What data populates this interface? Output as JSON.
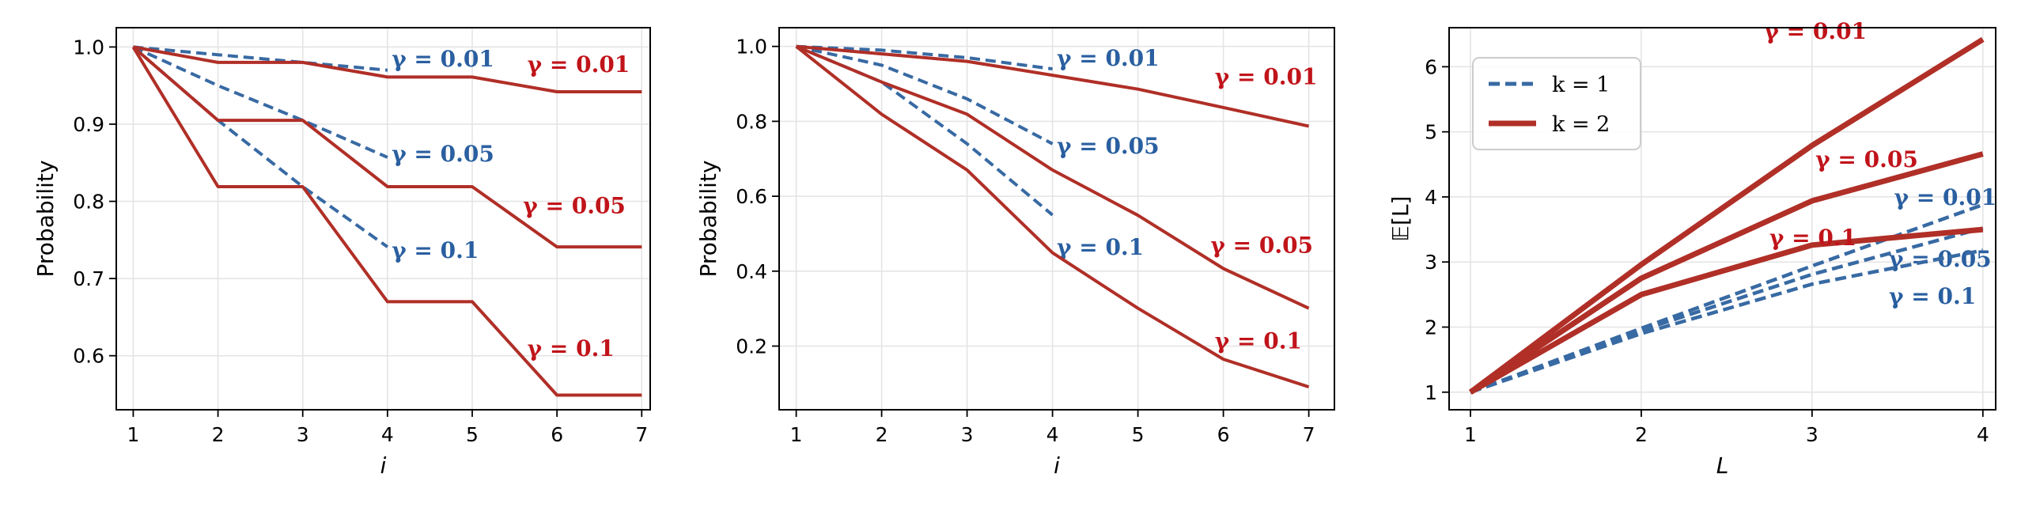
{
  "colors": {
    "blue": "#386aa3",
    "blue_label": "#2a5fa0",
    "red": "#b02f27",
    "red_label": "#c0141a"
  },
  "chart_data": [
    {
      "type": "line",
      "xlabel": "i",
      "ylabel": "Probability",
      "xlim": [
        0.8,
        7.1
      ],
      "ylim": [
        0.53,
        1.025
      ],
      "xticks": [
        1,
        2,
        3,
        4,
        5,
        6,
        7
      ],
      "yticks": [
        0.6,
        0.7,
        0.8,
        0.9,
        1.0
      ],
      "ytick_labels": [
        "0.6",
        "0.7",
        "0.8",
        "0.9",
        "1.0"
      ],
      "grid": true,
      "series": [
        {
          "style": "dashed",
          "color": "blue",
          "label": "γ = 0.01",
          "label_at": [
            4.05,
            0.985
          ],
          "x": [
            1,
            2,
            3,
            4
          ],
          "y": [
            1.0,
            0.99,
            0.98,
            0.97
          ]
        },
        {
          "style": "dashed",
          "color": "blue",
          "label": "γ = 0.05",
          "label_at": [
            4.05,
            0.862
          ],
          "x": [
            1,
            2,
            3,
            4
          ],
          "y": [
            1.0,
            0.95,
            0.905,
            0.857
          ]
        },
        {
          "style": "dashed",
          "color": "blue",
          "label": "γ = 0.1",
          "label_at": [
            4.05,
            0.737
          ],
          "x": [
            1,
            2,
            3,
            4
          ],
          "y": [
            1.0,
            0.905,
            0.819,
            0.741
          ]
        },
        {
          "style": "solid",
          "color": "red",
          "label": "γ = 0.01",
          "label_at": [
            5.65,
            0.978
          ],
          "x": [
            1,
            2,
            3,
            4,
            5,
            6,
            7
          ],
          "y": [
            1.0,
            0.98,
            0.98,
            0.961,
            0.961,
            0.942,
            0.942
          ]
        },
        {
          "style": "solid",
          "color": "red",
          "label": "γ = 0.05",
          "label_at": [
            5.6,
            0.795
          ],
          "x": [
            1,
            2,
            3,
            4,
            5,
            6,
            7
          ],
          "y": [
            1.0,
            0.905,
            0.905,
            0.819,
            0.819,
            0.741,
            0.741
          ]
        },
        {
          "style": "solid",
          "color": "red",
          "label": "γ = 0.1",
          "label_at": [
            5.65,
            0.61
          ],
          "x": [
            1,
            2,
            3,
            4,
            5,
            6,
            7
          ],
          "y": [
            1.0,
            0.819,
            0.819,
            0.67,
            0.67,
            0.549,
            0.549
          ]
        }
      ]
    },
    {
      "type": "line",
      "xlabel": "i",
      "ylabel": "Probability",
      "xlim": [
        0.8,
        7.3
      ],
      "ylim": [
        0.03,
        1.05
      ],
      "xticks": [
        1,
        2,
        3,
        4,
        5,
        6,
        7
      ],
      "yticks": [
        0.2,
        0.4,
        0.6,
        0.8,
        1.0
      ],
      "ytick_labels": [
        "0.2",
        "0.4",
        "0.6",
        "0.8",
        "1.0"
      ],
      "grid": true,
      "series": [
        {
          "style": "dashed",
          "color": "blue",
          "label": "γ = 0.01",
          "label_at": [
            4.05,
            0.97
          ],
          "x": [
            1,
            2,
            3,
            4
          ],
          "y": [
            1.0,
            0.99,
            0.97,
            0.94
          ]
        },
        {
          "style": "dashed",
          "color": "blue",
          "label": "γ = 0.05",
          "label_at": [
            4.05,
            0.735
          ],
          "x": [
            1,
            2,
            3,
            4
          ],
          "y": [
            1.0,
            0.95,
            0.86,
            0.74
          ]
        },
        {
          "style": "dashed",
          "color": "blue",
          "label": "γ = 0.1",
          "label_at": [
            4.05,
            0.465
          ],
          "x": [
            1,
            2,
            3,
            4
          ],
          "y": [
            1.0,
            0.905,
            0.74,
            0.55
          ]
        },
        {
          "style": "solid",
          "color": "red",
          "label": "γ = 0.01",
          "label_at": [
            5.9,
            0.92
          ],
          "x": [
            1,
            2,
            3,
            4,
            5,
            6,
            7
          ],
          "y": [
            1.0,
            0.98,
            0.96,
            0.923,
            0.886,
            0.837,
            0.787
          ]
        },
        {
          "style": "solid",
          "color": "red",
          "label": "γ = 0.05",
          "label_at": [
            5.85,
            0.47
          ],
          "x": [
            1,
            2,
            3,
            4,
            5,
            6,
            7
          ],
          "y": [
            1.0,
            0.905,
            0.819,
            0.67,
            0.549,
            0.407,
            0.301
          ]
        },
        {
          "style": "solid",
          "color": "red",
          "label": "γ = 0.1",
          "label_at": [
            5.9,
            0.215
          ],
          "x": [
            1,
            2,
            3,
            4,
            5,
            6,
            7
          ],
          "y": [
            1.0,
            0.819,
            0.67,
            0.449,
            0.301,
            0.165,
            0.091
          ]
        }
      ]
    },
    {
      "type": "line",
      "xlabel": "L",
      "ylabel": "𝔼[L]",
      "xlim": [
        0.875,
        4.075
      ],
      "ylim": [
        0.73,
        6.6
      ],
      "xticks": [
        1,
        2,
        3,
        4
      ],
      "yticks": [
        1,
        2,
        3,
        4,
        5,
        6
      ],
      "ytick_labels": [
        "1",
        "2",
        "3",
        "4",
        "5",
        "6"
      ],
      "grid": true,
      "legend": {
        "placement": "top-left",
        "entries": [
          {
            "label": "k = 1",
            "style": "dashed",
            "color": "blue"
          },
          {
            "label": "k = 2",
            "style": "solid",
            "color": "red"
          }
        ]
      },
      "series": [
        {
          "style": "dashed",
          "color": "blue",
          "label": "γ = 0.01",
          "label_at": [
            3.48,
            4.0
          ],
          "x": [
            1,
            2,
            3,
            4
          ],
          "y": [
            1.0,
            1.98,
            2.94,
            3.88
          ]
        },
        {
          "style": "dashed",
          "color": "blue",
          "label": "γ = 0.05",
          "label_at": [
            3.45,
            3.05
          ],
          "x": [
            1,
            2,
            3,
            4
          ],
          "y": [
            1.0,
            1.95,
            2.81,
            3.52
          ]
        },
        {
          "style": "dashed",
          "color": "blue",
          "label": "γ = 0.1",
          "label_at": [
            3.45,
            2.48
          ],
          "x": [
            1,
            2,
            3,
            4
          ],
          "y": [
            1.0,
            1.9,
            2.66,
            3.18
          ]
        },
        {
          "style": "solid",
          "color": "red",
          "label": "γ = 0.01",
          "label_at": [
            2.72,
            6.55
          ],
          "x": [
            1,
            2,
            3,
            4
          ],
          "y": [
            1.0,
            2.96,
            4.79,
            6.42
          ]
        },
        {
          "style": "solid",
          "color": "red",
          "label": "γ = 0.05",
          "label_at": [
            3.02,
            4.58
          ],
          "x": [
            1,
            2,
            3,
            4
          ],
          "y": [
            1.0,
            2.75,
            3.94,
            4.66
          ]
        },
        {
          "style": "solid",
          "color": "red",
          "label": "γ = 0.1",
          "label_at": [
            2.75,
            3.38
          ],
          "x": [
            1,
            2,
            3,
            4
          ],
          "y": [
            1.0,
            2.5,
            3.26,
            3.5
          ]
        }
      ]
    }
  ]
}
